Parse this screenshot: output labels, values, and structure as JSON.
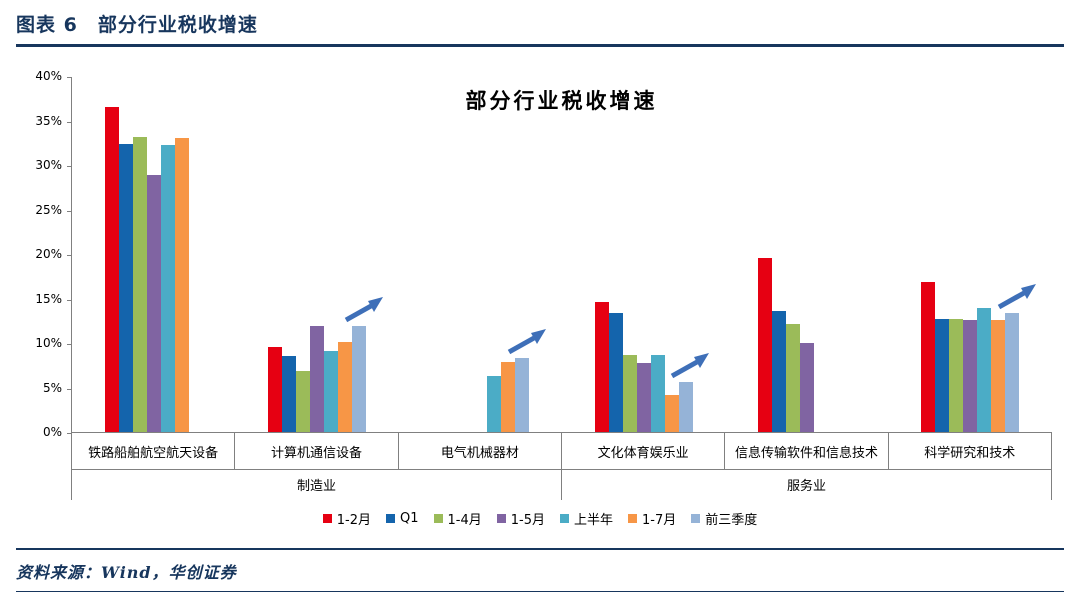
{
  "header": {
    "title": "图表 6　部分行业税收增速"
  },
  "source": {
    "text": "资料来源：Wind，华创证券"
  },
  "colors": {
    "accent_navy": "#17365D",
    "axis": "#808080",
    "arrow": "#3E6FB8"
  },
  "chart_data": {
    "type": "bar",
    "title": "部分行业税收增速",
    "xlabel": "",
    "ylabel": "",
    "ylim": [
      0,
      40
    ],
    "ytick_step": 5,
    "ytick_suffix": "%",
    "grid": false,
    "legend_position": "bottom",
    "categories": [
      "铁路船舶航空航天设备",
      "计算机通信设备",
      "电气机械器材",
      "文化体育娱乐业",
      "信息传输软件和信息技术",
      "科学研究和技术"
    ],
    "group_labels": [
      {
        "label": "制造业",
        "span": 3
      },
      {
        "label": "服务业",
        "span": 3
      }
    ],
    "series": [
      {
        "name": "1-2月",
        "color": "#E60012",
        "values": [
          36.5,
          9.5,
          null,
          14.6,
          19.5,
          16.9
        ]
      },
      {
        "name": "Q1",
        "color": "#1464AC",
        "values": [
          32.4,
          8.5,
          null,
          13.4,
          13.6,
          12.7
        ]
      },
      {
        "name": "1-4月",
        "color": "#9BBB59",
        "values": [
          33.2,
          6.9,
          null,
          8.7,
          12.1,
          12.7
        ]
      },
      {
        "name": "1-5月",
        "color": "#8064A2",
        "values": [
          28.9,
          11.9,
          null,
          7.8,
          10.0,
          12.6
        ]
      },
      {
        "name": "上半年",
        "color": "#4BACC6",
        "values": [
          32.2,
          9.1,
          6.3,
          8.6,
          null,
          13.9
        ]
      },
      {
        "name": "1-7月",
        "color": "#F79646",
        "values": [
          33.0,
          10.1,
          7.9,
          4.2,
          null,
          12.6
        ]
      },
      {
        "name": "前三季度",
        "color": "#95B3D7",
        "values": [
          null,
          11.9,
          8.3,
          5.6,
          null,
          13.4
        ]
      }
    ],
    "arrows": [
      false,
      true,
      true,
      true,
      false,
      true
    ]
  }
}
